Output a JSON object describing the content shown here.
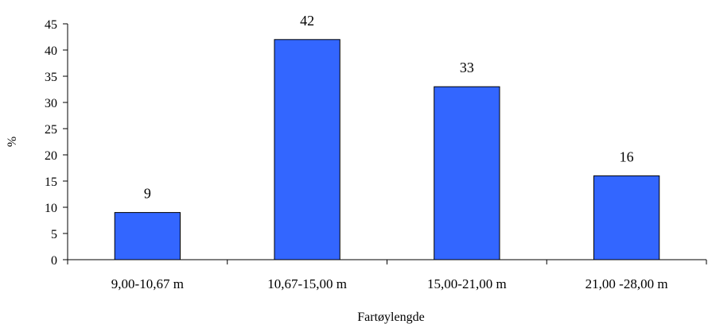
{
  "chart_data": {
    "type": "bar",
    "title": "",
    "xlabel": "Fartøylengde",
    "ylabel": "%",
    "categories": [
      "9,00-10,67 m",
      "10,67-15,00 m",
      "15,00-21,00 m",
      "21,00 -28,00 m"
    ],
    "values": [
      9,
      42,
      33,
      16
    ],
    "data_labels": [
      "9",
      "42",
      "33",
      "16"
    ],
    "ylim": [
      0,
      45
    ],
    "yticks": [
      0,
      5,
      10,
      15,
      20,
      25,
      30,
      35,
      40,
      45
    ],
    "grid": false,
    "legend": "none",
    "bar_color": "#3366FF",
    "bar_edge_color": "#000000"
  }
}
